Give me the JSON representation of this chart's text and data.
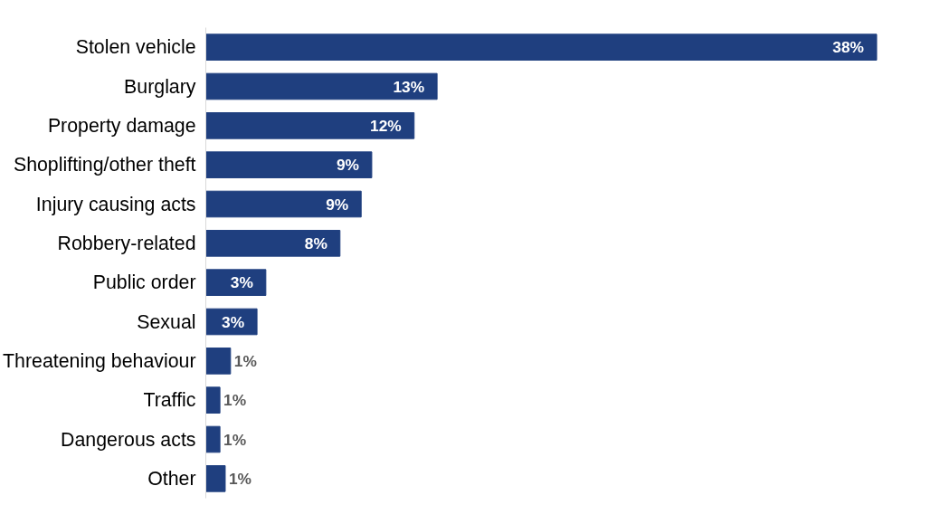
{
  "chart_data": {
    "type": "bar",
    "orientation": "horizontal",
    "categories": [
      "Stolen vehicle",
      "Burglary",
      "Property damage",
      "Shoplifting/other theft",
      "Injury causing acts",
      "Robbery-related",
      "Public order",
      "Sexual",
      "Threatening behaviour",
      "Traffic",
      "Dangerous acts",
      "Other"
    ],
    "values": [
      38,
      13.1,
      11.8,
      9.4,
      8.8,
      7.6,
      3.4,
      2.9,
      1.4,
      0.8,
      0.8,
      1.1
    ],
    "value_labels": [
      "38%",
      "13%",
      "12%",
      "9%",
      "9%",
      "8%",
      "3%",
      "3%",
      "1%",
      "1%",
      "1%",
      "1%"
    ],
    "color": "#1f3f7f",
    "xlim": [
      0,
      38
    ]
  }
}
